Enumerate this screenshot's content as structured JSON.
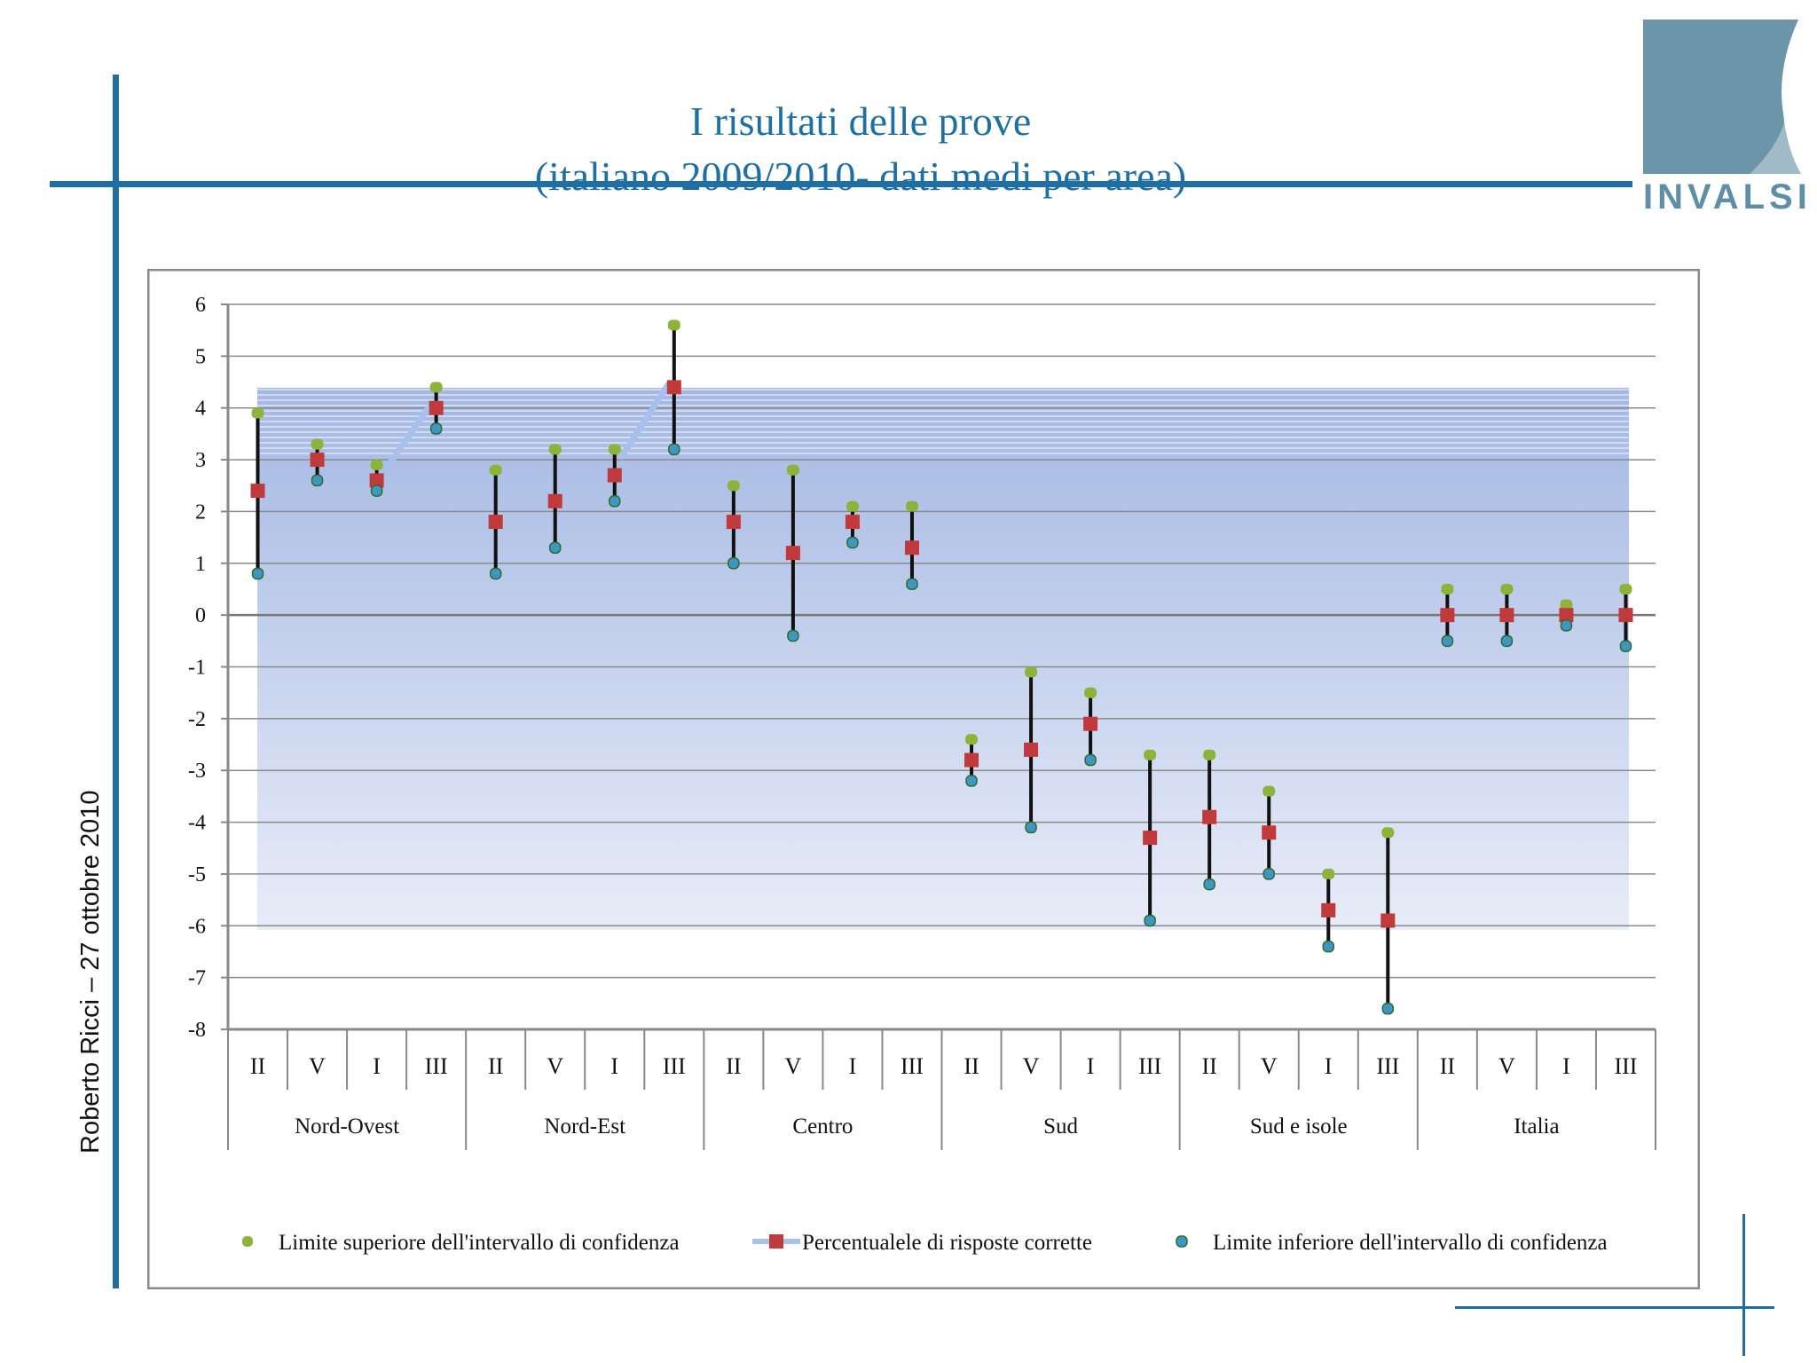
{
  "slide": {
    "title_line1": "I risultati delle prove",
    "title_line2": "(italiano 2009/2010- dati medi per area)",
    "author": "Roberto Ricci – 27 ottobre 2010",
    "logo_text": "INVALSI"
  },
  "colors": {
    "accent": "#1f6fa3",
    "upper": "#8db33a",
    "mean": "#c0393b",
    "lower": "#3f96c4",
    "logo": "#5f8fa6"
  },
  "chart_data": {
    "type": "scatter",
    "title": "I risultati delle prove (italiano 2009/2010- dati medi per area)",
    "ylim": [
      -8,
      6
    ],
    "yticks": [
      "6",
      "5",
      "4",
      "3",
      "2",
      "1",
      "0",
      "-1",
      "-2",
      "-3",
      "-4",
      "-5",
      "-6",
      "-7",
      "-8"
    ],
    "categories": [
      "II",
      "V",
      "I",
      "III",
      "II",
      "V",
      "I",
      "III",
      "II",
      "V",
      "I",
      "III",
      "II",
      "V",
      "I",
      "III",
      "II",
      "V",
      "I",
      "III",
      "II",
      "V",
      "I",
      "III"
    ],
    "groups": [
      "Nord-Ovest",
      "Nord-Est",
      "Centro",
      "Sud",
      "Sud e isole",
      "Italia"
    ],
    "series": [
      {
        "name": "Limite superiore dell'intervallo di confidenza",
        "values": [
          3.9,
          3.3,
          2.9,
          4.4,
          2.8,
          3.2,
          3.2,
          5.6,
          2.5,
          2.8,
          2.1,
          2.1,
          -2.4,
          -1.1,
          -1.5,
          -2.7,
          -2.7,
          -3.4,
          -5.0,
          -4.2,
          0.5,
          0.5,
          0.2,
          0.5
        ]
      },
      {
        "name": "Percentualele di risposte corrette",
        "values": [
          2.4,
          3.0,
          2.6,
          4.0,
          1.8,
          2.2,
          2.7,
          4.4,
          1.8,
          1.2,
          1.8,
          1.3,
          -2.8,
          -2.6,
          -2.1,
          -4.3,
          -3.9,
          -4.2,
          -5.7,
          -5.9,
          0.0,
          0.0,
          0.0,
          0.0
        ]
      },
      {
        "name": "Limite inferiore dell'intervallo di confidenza",
        "values": [
          0.8,
          2.6,
          2.4,
          3.6,
          0.8,
          1.3,
          2.2,
          3.2,
          1.0,
          -0.4,
          1.4,
          0.6,
          -3.2,
          -4.1,
          -2.8,
          -5.9,
          -5.2,
          -5.0,
          -6.4,
          -7.6,
          -0.5,
          -0.5,
          -0.2,
          -0.6
        ]
      }
    ],
    "legend": [
      "Limite superiore dell'intervallo di confidenza",
      "Percentualele di risposte corrette",
      "Limite inferiore dell'intervallo di confidenza"
    ],
    "legend_position": "bottom",
    "grid": true
  }
}
